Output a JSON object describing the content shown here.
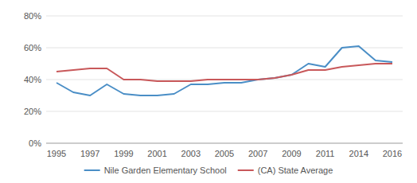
{
  "chart_data": {
    "type": "line",
    "categories": [
      "1995",
      null,
      "1997",
      null,
      "1999",
      null,
      "2001",
      null,
      "2003",
      null,
      "2005",
      null,
      "2007",
      null,
      "2009",
      null,
      "2011",
      null,
      "2014",
      null,
      "2016"
    ],
    "series": [
      {
        "name": "Nile Garden Elementary School",
        "color": "#4a8ec6",
        "values": [
          38,
          32,
          30,
          37,
          31,
          30,
          30,
          31,
          37,
          37,
          38,
          38,
          40,
          41,
          43,
          50,
          48,
          60,
          61,
          52,
          51
        ]
      },
      {
        "name": "(CA) State Average",
        "color": "#c8585a",
        "values": [
          45,
          46,
          47,
          47,
          40,
          40,
          39,
          39,
          39,
          40,
          40,
          40,
          40,
          41,
          43,
          46,
          46,
          48,
          49,
          50,
          50
        ]
      }
    ],
    "ylim": [
      0,
      80
    ],
    "yticks": [
      {
        "value": 0,
        "label": "0%"
      },
      {
        "value": 20,
        "label": "20%"
      },
      {
        "value": 40,
        "label": "40%"
      },
      {
        "value": 60,
        "label": "60%"
      },
      {
        "value": 80,
        "label": "80%"
      }
    ],
    "grid": true,
    "legend": "bottom"
  }
}
